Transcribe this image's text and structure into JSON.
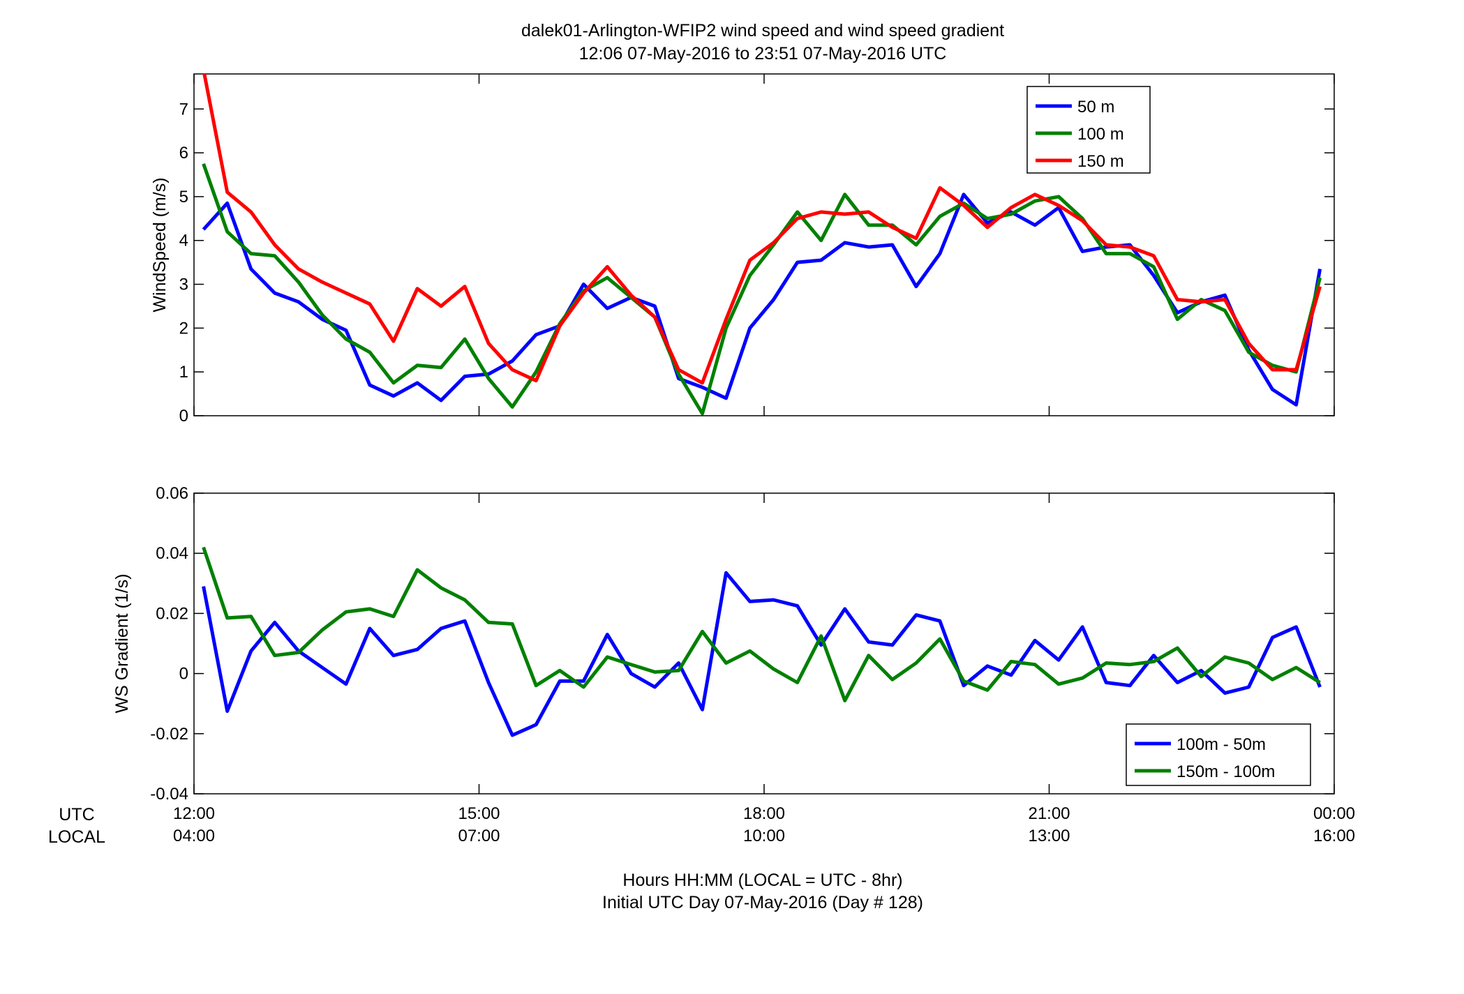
{
  "figure": {
    "title_line1": "dalek01-Arlington-WFIP2  wind speed and wind speed gradient",
    "title_line2": "12:06 07-May-2016 to 23:51 07-May-2016  UTC",
    "row_label_utc": "UTC",
    "row_label_local": "LOCAL",
    "xlabel_line1": "Hours HH:MM  (LOCAL = UTC - 8hr)",
    "xlabel_line2": "Initial UTC Day 07-May-2016 (Day # 128)",
    "xticks": [
      {
        "utc": "12:00",
        "local": "04:00",
        "hour": 12
      },
      {
        "utc": "15:00",
        "local": "07:00",
        "hour": 15
      },
      {
        "utc": "18:00",
        "local": "10:00",
        "hour": 18
      },
      {
        "utc": "21:00",
        "local": "13:00",
        "hour": 21
      },
      {
        "utc": "00:00",
        "local": "16:00",
        "hour": 24
      }
    ]
  },
  "chart_data": [
    {
      "type": "line",
      "ylabel": "WindSpeed (m/s)",
      "xlim": [
        12,
        24
      ],
      "ylim": [
        0,
        7.8
      ],
      "yticks": [
        0,
        1,
        2,
        3,
        4,
        5,
        6,
        7
      ],
      "yticklabels": [
        "0",
        "1",
        "2",
        "3",
        "4",
        "5",
        "6",
        "7"
      ],
      "legend_position": "top-right",
      "grid": false,
      "x": [
        12.1,
        12.35,
        12.6,
        12.85,
        13.1,
        13.35,
        13.6,
        13.85,
        14.1,
        14.35,
        14.6,
        14.85,
        15.1,
        15.35,
        15.6,
        15.85,
        16.1,
        16.35,
        16.6,
        16.85,
        17.1,
        17.35,
        17.6,
        17.85,
        18.1,
        18.35,
        18.6,
        18.85,
        19.1,
        19.35,
        19.6,
        19.85,
        20.1,
        20.35,
        20.6,
        20.85,
        21.1,
        21.35,
        21.6,
        21.85,
        22.1,
        22.35,
        22.6,
        22.85,
        23.1,
        23.35,
        23.6,
        23.85
      ],
      "series": [
        {
          "name": "50 m",
          "color": "#0000ff",
          "values": [
            4.25,
            4.85,
            3.35,
            2.8,
            2.6,
            2.2,
            1.95,
            0.7,
            0.45,
            0.75,
            0.35,
            0.9,
            0.95,
            1.25,
            1.85,
            2.05,
            3.0,
            2.45,
            2.7,
            2.5,
            0.85,
            0.65,
            0.4,
            2.0,
            2.65,
            3.5,
            3.55,
            3.95,
            3.85,
            3.9,
            2.95,
            3.7,
            5.05,
            4.4,
            4.65,
            4.35,
            4.75,
            3.75,
            3.85,
            3.9,
            3.2,
            2.35,
            2.6,
            2.75,
            1.5,
            0.6,
            0.25,
            3.35
          ]
        },
        {
          "name": "100 m",
          "color": "#008000",
          "values": [
            5.75,
            4.2,
            3.7,
            3.65,
            3.05,
            2.3,
            1.75,
            1.45,
            0.75,
            1.15,
            1.1,
            1.75,
            0.85,
            0.2,
            1.0,
            2.1,
            2.85,
            3.15,
            2.7,
            2.25,
            0.95,
            0.05,
            2.0,
            3.2,
            3.9,
            4.65,
            4.0,
            5.05,
            4.35,
            4.35,
            3.9,
            4.55,
            4.85,
            4.5,
            4.6,
            4.9,
            5.0,
            4.5,
            3.7,
            3.7,
            3.4,
            2.2,
            2.65,
            2.4,
            1.45,
            1.15,
            1.0,
            3.15
          ]
        },
        {
          "name": "150 m",
          "color": "#ff0000",
          "values": [
            7.9,
            5.1,
            4.65,
            3.9,
            3.35,
            3.05,
            2.8,
            2.55,
            1.7,
            2.9,
            2.5,
            2.95,
            1.65,
            1.05,
            0.8,
            2.05,
            2.8,
            3.4,
            2.75,
            2.25,
            1.05,
            0.75,
            2.2,
            3.55,
            3.95,
            4.5,
            4.65,
            4.6,
            4.65,
            4.3,
            4.05,
            5.2,
            4.8,
            4.3,
            4.75,
            5.05,
            4.8,
            4.45,
            3.9,
            3.85,
            3.65,
            2.65,
            2.6,
            2.65,
            1.65,
            1.05,
            1.05,
            2.95
          ]
        }
      ]
    },
    {
      "type": "line",
      "ylabel": "WS Gradient (1/s)",
      "xlim": [
        12,
        24
      ],
      "ylim": [
        -0.04,
        0.06
      ],
      "yticks": [
        -0.04,
        -0.02,
        0,
        0.02,
        0.04,
        0.06
      ],
      "yticklabels": [
        "-0.04",
        "-0.02",
        "0",
        "0.02",
        "0.04",
        "0.06"
      ],
      "legend_position": "bottom-right",
      "grid": false,
      "x": [
        12.1,
        12.35,
        12.6,
        12.85,
        13.1,
        13.35,
        13.6,
        13.85,
        14.1,
        14.35,
        14.6,
        14.85,
        15.1,
        15.35,
        15.6,
        15.85,
        16.1,
        16.35,
        16.6,
        16.85,
        17.1,
        17.35,
        17.6,
        17.85,
        18.1,
        18.35,
        18.6,
        18.85,
        19.1,
        19.35,
        19.6,
        19.85,
        20.1,
        20.35,
        20.6,
        20.85,
        21.1,
        21.35,
        21.6,
        21.85,
        22.1,
        22.35,
        22.6,
        22.85,
        23.1,
        23.35,
        23.6,
        23.85
      ],
      "series": [
        {
          "name": "100m - 50m",
          "color": "#0000ff",
          "values": [
            0.029,
            -0.0125,
            0.0075,
            0.017,
            0.0075,
            0.002,
            -0.0035,
            0.015,
            0.006,
            0.008,
            0.015,
            0.0175,
            -0.003,
            -0.0205,
            -0.017,
            -0.0025,
            -0.0025,
            0.013,
            0.0,
            -0.0045,
            0.0035,
            -0.012,
            0.0335,
            0.024,
            0.0245,
            0.0225,
            0.0095,
            0.0215,
            0.0105,
            0.0095,
            0.0195,
            0.0175,
            -0.004,
            0.0025,
            -0.0005,
            0.011,
            0.0045,
            0.0155,
            -0.003,
            -0.004,
            0.006,
            -0.003,
            0.001,
            -0.0065,
            -0.0045,
            0.012,
            0.0155,
            -0.0045
          ]
        },
        {
          "name": "150m - 100m",
          "color": "#008000",
          "values": [
            0.042,
            0.0185,
            0.019,
            0.006,
            0.007,
            0.0145,
            0.0205,
            0.0215,
            0.019,
            0.0345,
            0.0285,
            0.0245,
            0.017,
            0.0165,
            -0.004,
            0.001,
            -0.0045,
            0.0055,
            0.003,
            0.0005,
            0.001,
            0.014,
            0.0035,
            0.0075,
            0.0015,
            -0.003,
            0.0125,
            -0.009,
            0.006,
            -0.002,
            0.0035,
            0.0115,
            -0.0025,
            -0.0055,
            0.004,
            0.003,
            -0.0035,
            -0.0015,
            0.0035,
            0.003,
            0.004,
            0.0085,
            -0.001,
            0.0055,
            0.0035,
            -0.002,
            0.002,
            -0.003
          ]
        }
      ]
    }
  ]
}
